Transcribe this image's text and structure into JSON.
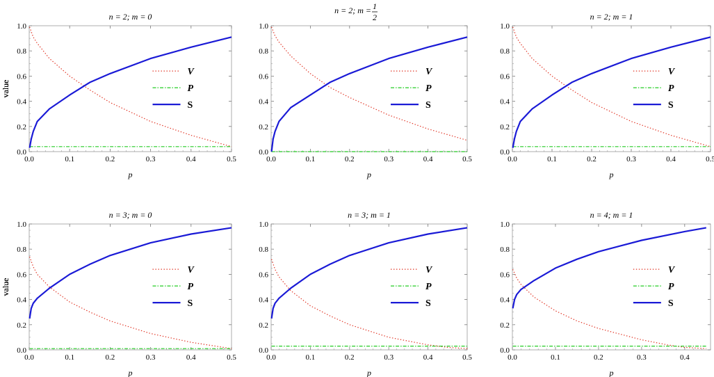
{
  "chart_data": [
    {
      "type": "line",
      "title": "n = 2; m = 0",
      "xlabel": "p",
      "ylabel": "value",
      "xlim": [
        0,
        0.5
      ],
      "ylim": [
        0,
        1
      ],
      "x_ticks": [
        "0.0",
        "0.1",
        "0.2",
        "0.3",
        "0.4",
        "0.5"
      ],
      "y_ticks": [
        "0.0",
        "0.2",
        "0.4",
        "0.6",
        "0.8",
        "1.0"
      ],
      "legend": [
        "V",
        "P",
        "S"
      ],
      "legend_position": "right",
      "series": [
        {
          "name": "V",
          "color": "#e03020",
          "style": "dotted",
          "x": [
            0.001,
            0.01,
            0.02,
            0.05,
            0.1,
            0.15,
            0.2,
            0.3,
            0.4,
            0.5
          ],
          "y": [
            0.99,
            0.91,
            0.86,
            0.74,
            0.6,
            0.49,
            0.39,
            0.24,
            0.13,
            0.04
          ]
        },
        {
          "name": "P",
          "color": "#22cc22",
          "style": "dashdot",
          "x": [
            0.001,
            0.1,
            0.2,
            0.3,
            0.4,
            0.5
          ],
          "y": [
            0.04,
            0.04,
            0.04,
            0.04,
            0.04,
            0.04
          ]
        },
        {
          "name": "S",
          "color": "#1a1ad6",
          "style": "solid",
          "x": [
            0.001,
            0.005,
            0.01,
            0.02,
            0.05,
            0.1,
            0.15,
            0.2,
            0.3,
            0.4,
            0.5
          ],
          "y": [
            0.03,
            0.1,
            0.16,
            0.24,
            0.34,
            0.45,
            0.55,
            0.62,
            0.74,
            0.83,
            0.91
          ]
        }
      ]
    },
    {
      "type": "line",
      "title": "n = 2; m = 1/2",
      "title_parts": {
        "prefix": "n = 2; m = ",
        "num": "1",
        "den": "2"
      },
      "xlabel": "p",
      "ylabel": "value",
      "xlim": [
        0,
        0.5
      ],
      "ylim": [
        0,
        1
      ],
      "x_ticks": [
        "0.0",
        "0.1",
        "0.2",
        "0.3",
        "0.4",
        "0.5"
      ],
      "y_ticks": [
        "0.0",
        "0.2",
        "0.4",
        "0.6",
        "0.8",
        "1.0"
      ],
      "legend": [
        "V",
        "P",
        "S"
      ],
      "legend_position": "right",
      "series": [
        {
          "name": "V",
          "color": "#e03020",
          "style": "dotted",
          "x": [
            0.001,
            0.01,
            0.02,
            0.05,
            0.1,
            0.15,
            0.2,
            0.3,
            0.4,
            0.5
          ],
          "y": [
            0.99,
            0.92,
            0.87,
            0.76,
            0.62,
            0.51,
            0.43,
            0.29,
            0.18,
            0.09
          ]
        },
        {
          "name": "P",
          "color": "#22cc22",
          "style": "dashdot",
          "x": [
            0.001,
            0.1,
            0.2,
            0.3,
            0.4,
            0.5
          ],
          "y": [
            0.0,
            0.0,
            0.0,
            0.0,
            0.0,
            0.0
          ]
        },
        {
          "name": "S",
          "color": "#1a1ad6",
          "style": "solid",
          "x": [
            0.001,
            0.005,
            0.01,
            0.02,
            0.05,
            0.1,
            0.15,
            0.2,
            0.3,
            0.4,
            0.5
          ],
          "y": [
            0.0,
            0.1,
            0.16,
            0.24,
            0.35,
            0.45,
            0.55,
            0.62,
            0.74,
            0.83,
            0.91
          ]
        }
      ]
    },
    {
      "type": "line",
      "title": "n = 2; m = 1",
      "xlabel": "p",
      "ylabel": "value",
      "xlim": [
        0,
        0.5
      ],
      "ylim": [
        0,
        1
      ],
      "x_ticks": [
        "0.0",
        "0.1",
        "0.2",
        "0.3",
        "0.4",
        "0.5"
      ],
      "y_ticks": [
        "0.0",
        "0.2",
        "0.4",
        "0.6",
        "0.8",
        "1.0"
      ],
      "legend": [
        "V",
        "P",
        "S"
      ],
      "legend_position": "right",
      "series": [
        {
          "name": "V",
          "color": "#e03020",
          "style": "dotted",
          "x": [
            0.001,
            0.01,
            0.02,
            0.05,
            0.1,
            0.15,
            0.2,
            0.3,
            0.4,
            0.5
          ],
          "y": [
            0.99,
            0.91,
            0.86,
            0.74,
            0.6,
            0.49,
            0.39,
            0.24,
            0.13,
            0.04
          ]
        },
        {
          "name": "P",
          "color": "#22cc22",
          "style": "dashdot",
          "x": [
            0.001,
            0.1,
            0.2,
            0.3,
            0.4,
            0.5
          ],
          "y": [
            0.04,
            0.04,
            0.04,
            0.04,
            0.04,
            0.04
          ]
        },
        {
          "name": "S",
          "color": "#1a1ad6",
          "style": "solid",
          "x": [
            0.001,
            0.005,
            0.01,
            0.02,
            0.05,
            0.1,
            0.15,
            0.2,
            0.3,
            0.4,
            0.5
          ],
          "y": [
            0.03,
            0.1,
            0.16,
            0.24,
            0.34,
            0.45,
            0.55,
            0.62,
            0.74,
            0.83,
            0.91
          ]
        }
      ]
    },
    {
      "type": "line",
      "title": "n = 3; m = 0",
      "xlabel": "p",
      "ylabel": "value",
      "xlim": [
        0,
        0.5
      ],
      "ylim": [
        0,
        1
      ],
      "x_ticks": [
        "0.0",
        "0.1",
        "0.2",
        "0.3",
        "0.4",
        "0.5"
      ],
      "y_ticks": [
        "0.0",
        "0.2",
        "0.4",
        "0.6",
        "0.8",
        "1.0"
      ],
      "legend": [
        "V",
        "P",
        "S"
      ],
      "legend_position": "right",
      "series": [
        {
          "name": "V",
          "color": "#e03020",
          "style": "dotted",
          "x": [
            0.001,
            0.01,
            0.02,
            0.05,
            0.1,
            0.15,
            0.2,
            0.3,
            0.4,
            0.5
          ],
          "y": [
            0.74,
            0.66,
            0.6,
            0.5,
            0.38,
            0.3,
            0.23,
            0.13,
            0.06,
            0.01
          ]
        },
        {
          "name": "P",
          "color": "#22cc22",
          "style": "dashdot",
          "x": [
            0.001,
            0.1,
            0.2,
            0.3,
            0.4,
            0.5
          ],
          "y": [
            0.01,
            0.01,
            0.01,
            0.01,
            0.01,
            0.01
          ]
        },
        {
          "name": "S",
          "color": "#1a1ad6",
          "style": "solid",
          "x": [
            0.001,
            0.005,
            0.01,
            0.02,
            0.05,
            0.1,
            0.15,
            0.2,
            0.3,
            0.4,
            0.5
          ],
          "y": [
            0.25,
            0.33,
            0.37,
            0.41,
            0.49,
            0.6,
            0.68,
            0.75,
            0.85,
            0.92,
            0.97
          ]
        }
      ]
    },
    {
      "type": "line",
      "title": "n = 3; m = 1",
      "xlabel": "p",
      "ylabel": "value",
      "xlim": [
        0,
        0.5
      ],
      "ylim": [
        0,
        1
      ],
      "x_ticks": [
        "0.0",
        "0.1",
        "0.2",
        "0.3",
        "0.4",
        "0.5"
      ],
      "y_ticks": [
        "0.0",
        "0.2",
        "0.4",
        "0.6",
        "0.8",
        "1.0"
      ],
      "legend": [
        "V",
        "P",
        "S"
      ],
      "legend_position": "right",
      "series": [
        {
          "name": "V",
          "color": "#e03020",
          "style": "dotted",
          "x": [
            0.001,
            0.01,
            0.02,
            0.05,
            0.1,
            0.15,
            0.2,
            0.3,
            0.4,
            0.45,
            0.5
          ],
          "y": [
            0.72,
            0.64,
            0.58,
            0.47,
            0.35,
            0.27,
            0.2,
            0.1,
            0.04,
            0.02,
            0.01
          ]
        },
        {
          "name": "P",
          "color": "#22cc22",
          "style": "dashdot",
          "x": [
            0.001,
            0.1,
            0.2,
            0.3,
            0.4,
            0.5
          ],
          "y": [
            0.03,
            0.03,
            0.03,
            0.03,
            0.03,
            0.03
          ]
        },
        {
          "name": "S",
          "color": "#1a1ad6",
          "style": "solid",
          "x": [
            0.001,
            0.005,
            0.01,
            0.02,
            0.05,
            0.1,
            0.15,
            0.2,
            0.3,
            0.4,
            0.5
          ],
          "y": [
            0.25,
            0.33,
            0.37,
            0.41,
            0.49,
            0.6,
            0.68,
            0.75,
            0.85,
            0.92,
            0.97
          ]
        }
      ]
    },
    {
      "type": "line",
      "title": "n = 4; m = 1",
      "xlabel": "p",
      "ylabel": "value",
      "xlim": [
        0,
        0.46
      ],
      "ylim": [
        0,
        1
      ],
      "x_ticks": [
        "0.0",
        "0.1",
        "0.2",
        "0.3",
        "0.4"
      ],
      "y_ticks": [
        "0.0",
        "0.2",
        "0.4",
        "0.6",
        "0.8",
        "1.0"
      ],
      "legend": [
        "V",
        "P",
        "S"
      ],
      "legend_position": "right",
      "series": [
        {
          "name": "V",
          "color": "#e03020",
          "style": "dotted",
          "x": [
            0.001,
            0.01,
            0.02,
            0.05,
            0.1,
            0.15,
            0.2,
            0.3,
            0.36,
            0.4,
            0.45
          ],
          "y": [
            0.64,
            0.57,
            0.52,
            0.42,
            0.31,
            0.23,
            0.17,
            0.08,
            0.04,
            0.02,
            0.01
          ]
        },
        {
          "name": "P",
          "color": "#22cc22",
          "style": "dashdot",
          "x": [
            0.001,
            0.1,
            0.2,
            0.3,
            0.4,
            0.45
          ],
          "y": [
            0.03,
            0.03,
            0.03,
            0.03,
            0.03,
            0.03
          ]
        },
        {
          "name": "S",
          "color": "#1a1ad6",
          "style": "solid",
          "x": [
            0.001,
            0.005,
            0.01,
            0.02,
            0.05,
            0.1,
            0.15,
            0.2,
            0.3,
            0.4,
            0.45
          ],
          "y": [
            0.33,
            0.4,
            0.44,
            0.48,
            0.55,
            0.65,
            0.72,
            0.78,
            0.87,
            0.94,
            0.97
          ]
        }
      ]
    }
  ]
}
